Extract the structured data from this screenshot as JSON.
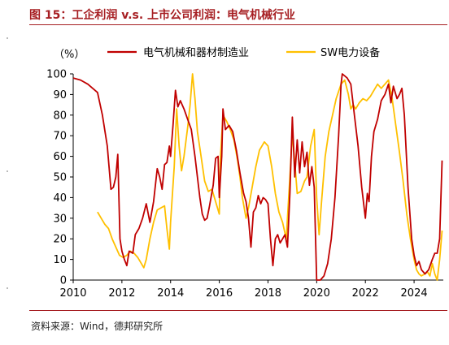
{
  "header": {
    "title": "图 15：工企利润 v.s. 上市公司利润：电气机械行业"
  },
  "footer": {
    "source": "资料来源：Wind，德邦研究所"
  },
  "colors": {
    "accent": "#a61e22",
    "series_red": "#c00000",
    "series_yellow": "#ffc000"
  },
  "chart_data": {
    "type": "line",
    "title": "",
    "ylabel": "（%）",
    "xlabel": "",
    "xlim": [
      2010,
      2025.2
    ],
    "ylim": [
      0,
      100
    ],
    "xticks": [
      2010,
      2012,
      2014,
      2016,
      2018,
      2020,
      2022,
      2024
    ],
    "yticks": [
      0,
      10,
      20,
      30,
      40,
      50,
      60,
      70,
      80,
      90,
      100
    ],
    "grid": false,
    "legend_position": "top",
    "series": [
      {
        "name": "电气机械和器材制造业",
        "color": "#c00000",
        "points": [
          [
            2010.0,
            98
          ],
          [
            2010.3,
            97
          ],
          [
            2010.6,
            95
          ],
          [
            2011.0,
            91
          ],
          [
            2011.2,
            80
          ],
          [
            2011.4,
            65
          ],
          [
            2011.55,
            44
          ],
          [
            2011.65,
            45
          ],
          [
            2011.75,
            50
          ],
          [
            2011.83,
            61
          ],
          [
            2011.92,
            20
          ],
          [
            2012.0,
            14
          ],
          [
            2012.1,
            10
          ],
          [
            2012.2,
            7
          ],
          [
            2012.3,
            14
          ],
          [
            2012.45,
            13
          ],
          [
            2012.55,
            22
          ],
          [
            2012.7,
            25
          ],
          [
            2012.85,
            30
          ],
          [
            2013.0,
            37
          ],
          [
            2013.15,
            28
          ],
          [
            2013.3,
            38
          ],
          [
            2013.45,
            54
          ],
          [
            2013.55,
            50
          ],
          [
            2013.65,
            44
          ],
          [
            2013.75,
            56
          ],
          [
            2013.85,
            57
          ],
          [
            2013.95,
            65
          ],
          [
            2014.0,
            60
          ],
          [
            2014.1,
            75
          ],
          [
            2014.2,
            92
          ],
          [
            2014.3,
            84
          ],
          [
            2014.4,
            87
          ],
          [
            2014.55,
            83
          ],
          [
            2014.7,
            78
          ],
          [
            2014.85,
            73
          ],
          [
            2015.0,
            60
          ],
          [
            2015.1,
            50
          ],
          [
            2015.2,
            40
          ],
          [
            2015.3,
            32
          ],
          [
            2015.4,
            29
          ],
          [
            2015.5,
            30
          ],
          [
            2015.6,
            36
          ],
          [
            2015.75,
            46
          ],
          [
            2015.85,
            59
          ],
          [
            2015.95,
            60
          ],
          [
            2016.0,
            40
          ],
          [
            2016.1,
            60
          ],
          [
            2016.15,
            83
          ],
          [
            2016.25,
            73
          ],
          [
            2016.4,
            75
          ],
          [
            2016.55,
            72
          ],
          [
            2016.7,
            63
          ],
          [
            2016.85,
            52
          ],
          [
            2017.0,
            42
          ],
          [
            2017.1,
            38
          ],
          [
            2017.2,
            30
          ],
          [
            2017.3,
            16
          ],
          [
            2017.4,
            33
          ],
          [
            2017.5,
            35
          ],
          [
            2017.6,
            41
          ],
          [
            2017.7,
            37
          ],
          [
            2017.8,
            40
          ],
          [
            2017.9,
            39
          ],
          [
            2018.0,
            37
          ],
          [
            2018.1,
            20
          ],
          [
            2018.2,
            7
          ],
          [
            2018.3,
            20
          ],
          [
            2018.4,
            22
          ],
          [
            2018.5,
            18
          ],
          [
            2018.6,
            20
          ],
          [
            2018.7,
            22
          ],
          [
            2018.8,
            16
          ],
          [
            2018.9,
            42
          ],
          [
            2019.0,
            79
          ],
          [
            2019.1,
            50
          ],
          [
            2019.2,
            68
          ],
          [
            2019.3,
            52
          ],
          [
            2019.4,
            67
          ],
          [
            2019.5,
            55
          ],
          [
            2019.6,
            62
          ],
          [
            2019.7,
            46
          ],
          [
            2019.8,
            55
          ],
          [
            2019.9,
            45
          ],
          [
            2020.0,
            0
          ],
          [
            2020.15,
            0
          ],
          [
            2020.3,
            2
          ],
          [
            2020.45,
            8
          ],
          [
            2020.6,
            20
          ],
          [
            2020.75,
            40
          ],
          [
            2020.9,
            70
          ],
          [
            2021.0,
            95
          ],
          [
            2021.05,
            100
          ],
          [
            2021.25,
            98
          ],
          [
            2021.4,
            95
          ],
          [
            2021.55,
            80
          ],
          [
            2021.7,
            65
          ],
          [
            2021.85,
            45
          ],
          [
            2022.0,
            30
          ],
          [
            2022.08,
            42
          ],
          [
            2022.15,
            38
          ],
          [
            2022.25,
            60
          ],
          [
            2022.35,
            72
          ],
          [
            2022.5,
            78
          ],
          [
            2022.65,
            87
          ],
          [
            2022.8,
            90
          ],
          [
            2022.95,
            95
          ],
          [
            2023.05,
            86
          ],
          [
            2023.15,
            94
          ],
          [
            2023.3,
            88
          ],
          [
            2023.4,
            90
          ],
          [
            2023.5,
            93
          ],
          [
            2023.6,
            80
          ],
          [
            2023.75,
            45
          ],
          [
            2023.9,
            20
          ],
          [
            2024.0,
            12
          ],
          [
            2024.1,
            7
          ],
          [
            2024.2,
            9
          ],
          [
            2024.3,
            5
          ],
          [
            2024.45,
            3
          ],
          [
            2024.6,
            5
          ],
          [
            2024.75,
            10
          ],
          [
            2024.85,
            13
          ],
          [
            2024.95,
            13
          ],
          [
            2025.05,
            20
          ],
          [
            2025.15,
            58
          ]
        ]
      },
      {
        "name": "SW电力设备",
        "color": "#ffc000",
        "points": [
          [
            2011.0,
            33
          ],
          [
            2011.15,
            30
          ],
          [
            2011.3,
            27
          ],
          [
            2011.45,
            25
          ],
          [
            2011.6,
            20
          ],
          [
            2011.75,
            16
          ],
          [
            2011.9,
            12
          ],
          [
            2012.05,
            11
          ],
          [
            2012.2,
            12
          ],
          [
            2012.35,
            14
          ],
          [
            2012.5,
            13
          ],
          [
            2012.65,
            11
          ],
          [
            2012.8,
            8
          ],
          [
            2012.9,
            6
          ],
          [
            2013.0,
            10
          ],
          [
            2013.15,
            20
          ],
          [
            2013.3,
            28
          ],
          [
            2013.45,
            34
          ],
          [
            2013.6,
            35
          ],
          [
            2013.75,
            36
          ],
          [
            2013.85,
            25
          ],
          [
            2013.95,
            15
          ],
          [
            2014.0,
            28
          ],
          [
            2014.15,
            55
          ],
          [
            2014.25,
            83
          ],
          [
            2014.35,
            65
          ],
          [
            2014.45,
            53
          ],
          [
            2014.55,
            60
          ],
          [
            2014.7,
            74
          ],
          [
            2014.8,
            85
          ],
          [
            2014.9,
            100
          ],
          [
            2015.0,
            88
          ],
          [
            2015.1,
            72
          ],
          [
            2015.25,
            60
          ],
          [
            2015.4,
            48
          ],
          [
            2015.55,
            43
          ],
          [
            2015.7,
            44
          ],
          [
            2015.85,
            38
          ],
          [
            2016.0,
            32
          ],
          [
            2016.05,
            60
          ],
          [
            2016.15,
            80
          ],
          [
            2016.3,
            77
          ],
          [
            2016.45,
            73
          ],
          [
            2016.6,
            68
          ],
          [
            2016.75,
            58
          ],
          [
            2016.85,
            50
          ],
          [
            2016.95,
            40
          ],
          [
            2017.1,
            30
          ],
          [
            2017.2,
            35
          ],
          [
            2017.35,
            45
          ],
          [
            2017.5,
            55
          ],
          [
            2017.65,
            63
          ],
          [
            2017.85,
            67
          ],
          [
            2018.0,
            65
          ],
          [
            2018.15,
            55
          ],
          [
            2018.3,
            42
          ],
          [
            2018.45,
            33
          ],
          [
            2018.6,
            28
          ],
          [
            2018.75,
            20
          ],
          [
            2018.9,
            50
          ],
          [
            2019.0,
            71
          ],
          [
            2019.1,
            57
          ],
          [
            2019.2,
            42
          ],
          [
            2019.35,
            43
          ],
          [
            2019.5,
            48
          ],
          [
            2019.6,
            50
          ],
          [
            2019.75,
            65
          ],
          [
            2019.9,
            73
          ],
          [
            2020.0,
            40
          ],
          [
            2020.1,
            22
          ],
          [
            2020.2,
            38
          ],
          [
            2020.35,
            60
          ],
          [
            2020.5,
            72
          ],
          [
            2020.65,
            80
          ],
          [
            2020.8,
            88
          ],
          [
            2021.0,
            95
          ],
          [
            2021.15,
            97
          ],
          [
            2021.3,
            90
          ],
          [
            2021.4,
            83
          ],
          [
            2021.5,
            85
          ],
          [
            2021.6,
            83
          ],
          [
            2021.75,
            86
          ],
          [
            2021.9,
            88
          ],
          [
            2022.05,
            87
          ],
          [
            2022.2,
            89
          ],
          [
            2022.35,
            92
          ],
          [
            2022.5,
            95
          ],
          [
            2022.65,
            93
          ],
          [
            2022.8,
            95
          ],
          [
            2022.95,
            97
          ],
          [
            2023.1,
            88
          ],
          [
            2023.25,
            75
          ],
          [
            2023.4,
            62
          ],
          [
            2023.55,
            48
          ],
          [
            2023.7,
            32
          ],
          [
            2023.85,
            20
          ],
          [
            2024.0,
            10
          ],
          [
            2024.1,
            5
          ],
          [
            2024.2,
            3
          ],
          [
            2024.3,
            2
          ],
          [
            2024.45,
            3
          ],
          [
            2024.55,
            4
          ],
          [
            2024.65,
            2
          ],
          [
            2024.75,
            8
          ],
          [
            2024.85,
            3
          ],
          [
            2024.95,
            0
          ],
          [
            2025.05,
            10
          ],
          [
            2025.15,
            24
          ]
        ]
      }
    ]
  }
}
